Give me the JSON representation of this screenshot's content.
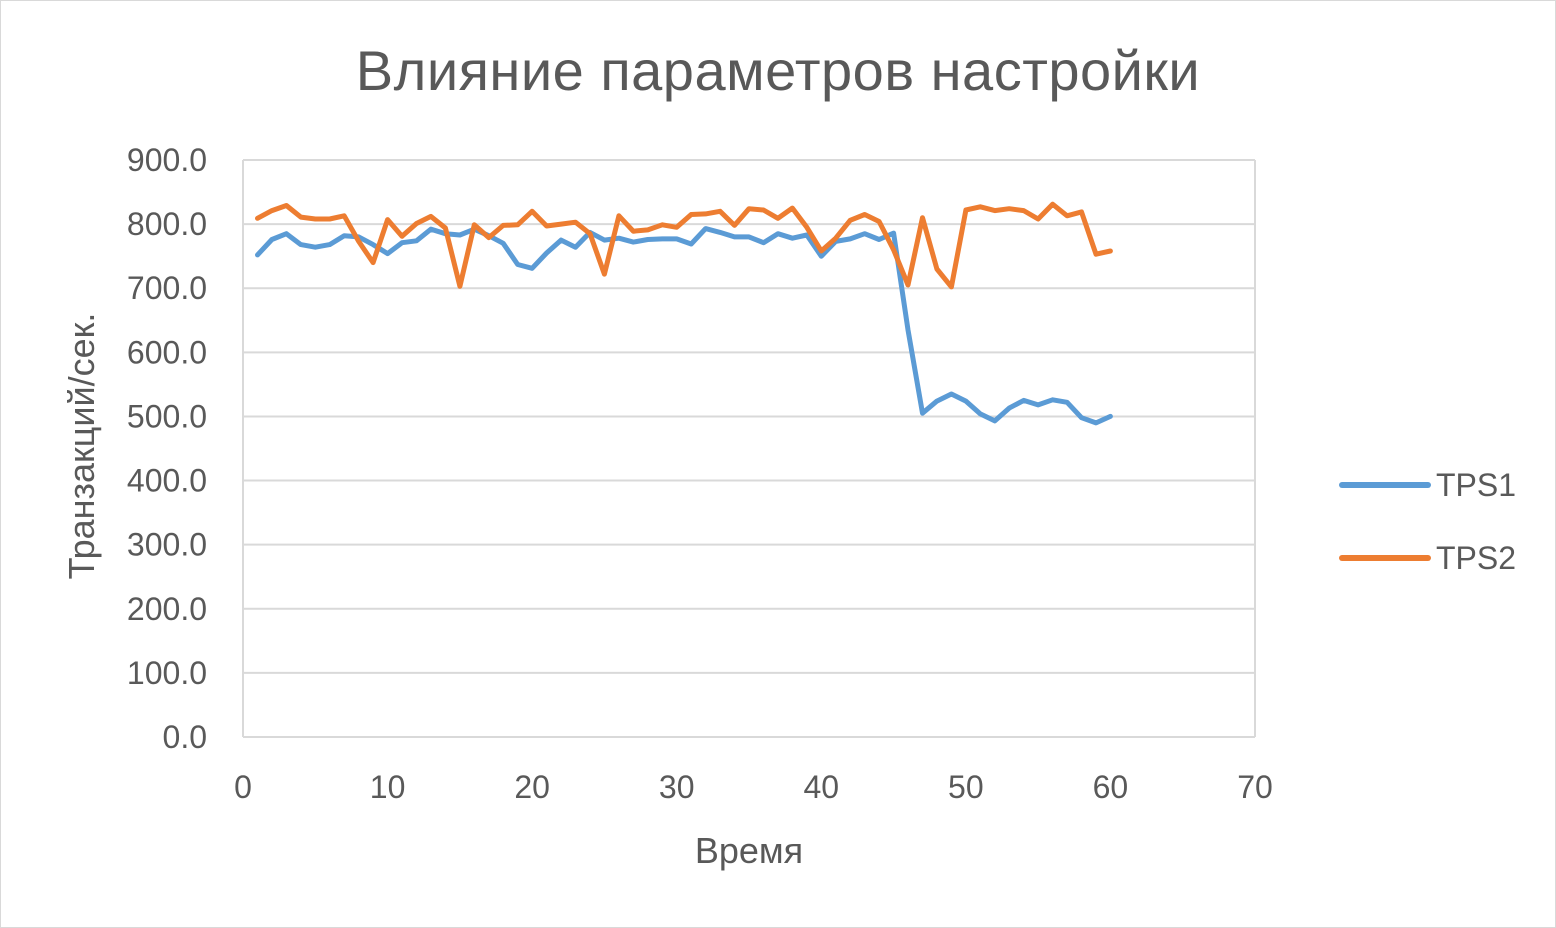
{
  "chart_data": {
    "type": "line",
    "title": "Влияние параметров настройки",
    "xlabel": "Время",
    "ylabel": "Транзакций/сек.",
    "xlim": [
      0,
      70
    ],
    "ylim": [
      0,
      900
    ],
    "x_ticks": [
      0,
      10,
      20,
      30,
      40,
      50,
      60,
      70
    ],
    "x_tick_labels": [
      "0",
      "10",
      "20",
      "30",
      "40",
      "50",
      "60",
      "70"
    ],
    "y_ticks": [
      0,
      100,
      200,
      300,
      400,
      500,
      600,
      700,
      800,
      900
    ],
    "y_tick_labels": [
      "0.0",
      "100.0",
      "200.0",
      "300.0",
      "400.0",
      "500.0",
      "600.0",
      "700.0",
      "800.0",
      "900.0"
    ],
    "grid": "horizontal",
    "legend_position": "right",
    "x": [
      1,
      2,
      3,
      4,
      5,
      6,
      7,
      8,
      9,
      10,
      11,
      12,
      13,
      14,
      15,
      16,
      17,
      18,
      19,
      20,
      21,
      22,
      23,
      24,
      25,
      26,
      27,
      28,
      29,
      30,
      31,
      32,
      33,
      34,
      35,
      36,
      37,
      38,
      39,
      40,
      41,
      42,
      43,
      44,
      45,
      46,
      47,
      48,
      49,
      50,
      51,
      52,
      53,
      54,
      55,
      56,
      57,
      58,
      59,
      60
    ],
    "series": [
      {
        "name": "TPS1",
        "color": "#5b9bd5",
        "values": [
          752,
          776,
          785,
          768,
          764,
          768,
          782,
          780,
          768,
          754,
          771,
          774,
          792,
          785,
          783,
          792,
          782,
          770,
          737,
          731,
          755,
          775,
          764,
          787,
          775,
          778,
          772,
          776,
          777,
          777,
          769,
          793,
          787,
          780,
          780,
          771,
          785,
          778,
          783,
          750,
          773,
          777,
          785,
          776,
          786,
          635,
          505,
          524,
          535,
          524,
          504,
          493,
          513,
          525,
          518,
          526,
          522,
          498,
          490,
          500
        ]
      },
      {
        "name": "TPS2",
        "color": "#ed7d31",
        "values": [
          809,
          821,
          829,
          811,
          808,
          808,
          813,
          773,
          740,
          807,
          781,
          801,
          812,
          794,
          703,
          799,
          779,
          798,
          799,
          820,
          797,
          800,
          803,
          785,
          722,
          813,
          789,
          791,
          799,
          795,
          815,
          816,
          820,
          798,
          824,
          822,
          809,
          825,
          795,
          758,
          778,
          806,
          815,
          804,
          760,
          705,
          810,
          730,
          702,
          822,
          827,
          821,
          824,
          821,
          808,
          831,
          813,
          819,
          753,
          758
        ]
      }
    ]
  }
}
